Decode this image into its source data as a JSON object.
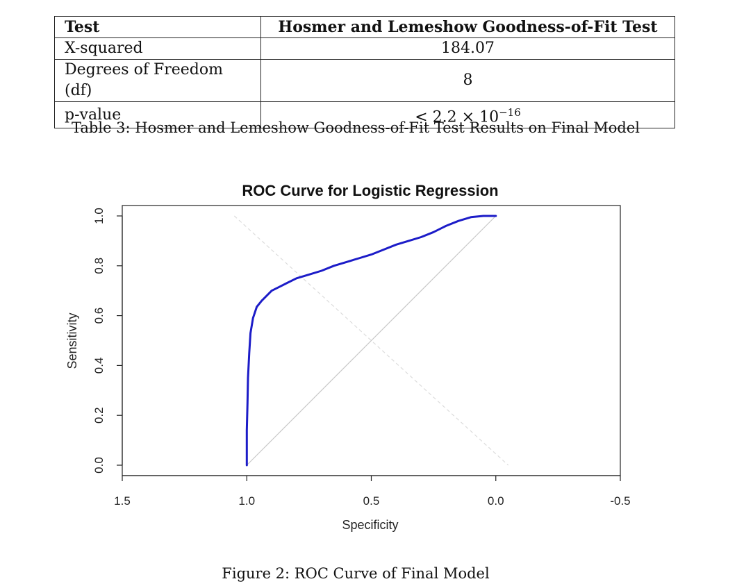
{
  "table": {
    "header": [
      "Test",
      "Hosmer and Lemeshow Goodness-of-Fit Test"
    ],
    "rows": [
      [
        "X-squared",
        "184.07"
      ],
      [
        "Degrees of Freedom (df)",
        "8"
      ],
      [
        "p-value",
        "< 2.2 × 10",
        "−16"
      ]
    ],
    "caption": "Table 3: Hosmer and Lemeshow Goodness-of-Fit Test Results on Final Model"
  },
  "figure_caption": "Figure 2: ROC Curve of Final Model",
  "chart_data": {
    "type": "line",
    "title": "ROC Curve for Logistic Regression",
    "xlabel": "Specificity",
    "ylabel": "Sensitivity",
    "xlim": [
      1.5,
      -0.5
    ],
    "ylim": [
      0.0,
      1.0
    ],
    "x_axis_reversed": true,
    "x_ticks": [
      "1.5",
      "1.0",
      "0.5",
      "0.0",
      "-0.5"
    ],
    "y_ticks": [
      "0.0",
      "0.2",
      "0.4",
      "0.6",
      "0.8",
      "1.0"
    ],
    "grid": false,
    "reference_lines": [
      {
        "name": "diagonal",
        "color": "#c8c8c8",
        "style": "solid",
        "x": [
          1.0,
          0.0
        ],
        "y": [
          0.0,
          1.0
        ]
      },
      {
        "name": "anti-diagonal",
        "color": "#dcdcdc",
        "style": "dashed",
        "x": [
          1.05,
          -0.05
        ],
        "y": [
          1.0,
          0.0
        ]
      }
    ],
    "series": [
      {
        "color": "#1c1cc8",
        "x": [
          1.0,
          1.0,
          0.997,
          0.995,
          0.99,
          0.985,
          0.975,
          0.96,
          0.94,
          0.92,
          0.9,
          0.87,
          0.84,
          0.8,
          0.75,
          0.7,
          0.65,
          0.6,
          0.55,
          0.5,
          0.45,
          0.4,
          0.35,
          0.3,
          0.25,
          0.2,
          0.15,
          0.1,
          0.05,
          0.0
        ],
        "y": [
          0.0,
          0.14,
          0.25,
          0.35,
          0.45,
          0.53,
          0.59,
          0.635,
          0.66,
          0.68,
          0.7,
          0.715,
          0.73,
          0.75,
          0.765,
          0.78,
          0.8,
          0.815,
          0.83,
          0.845,
          0.865,
          0.885,
          0.9,
          0.915,
          0.935,
          0.96,
          0.98,
          0.995,
          1.0,
          1.0
        ]
      }
    ]
  }
}
